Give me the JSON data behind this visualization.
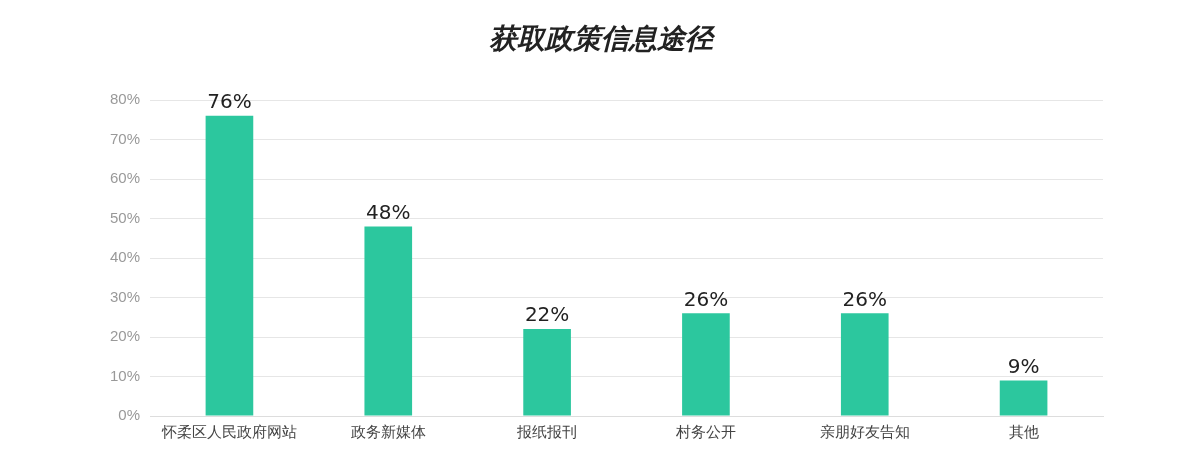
{
  "chart_data": {
    "type": "bar",
    "title": "获取政策信息途径",
    "categories": [
      "怀柔区人民政府网站",
      "政务新媒体",
      "报纸报刊",
      "村务公开",
      "亲朋好友告知",
      "其他"
    ],
    "values": [
      76,
      48,
      22,
      26,
      26,
      9
    ],
    "value_labels": [
      "76%",
      "48%",
      "22%",
      "26%",
      "26%",
      "9%"
    ],
    "color": "#2cc79e",
    "ylim": [
      0,
      80
    ],
    "yticks": [
      {
        "value": 0,
        "label": "0%"
      },
      {
        "value": 10,
        "label": "10%"
      },
      {
        "value": 20,
        "label": "20%"
      },
      {
        "value": 30,
        "label": "30%"
      },
      {
        "value": 40,
        "label": "40%"
      },
      {
        "value": 50,
        "label": "50%"
      },
      {
        "value": 60,
        "label": "60%"
      },
      {
        "value": 70,
        "label": "70%"
      },
      {
        "value": 80,
        "label": "80%"
      }
    ],
    "grid": "y"
  }
}
